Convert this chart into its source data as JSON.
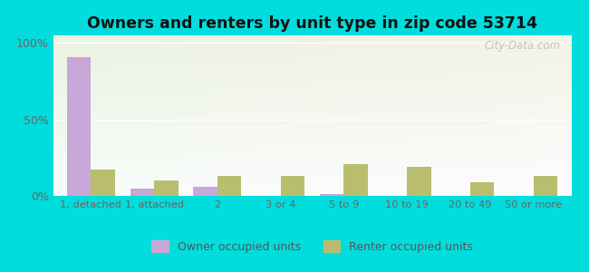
{
  "title": "Owners and renters by unit type in zip code 53714",
  "categories": [
    "1, detached",
    "1, attached",
    "2",
    "3 or 4",
    "5 to 9",
    "10 to 19",
    "20 to 49",
    "50 or more"
  ],
  "owner_values": [
    91,
    5,
    6,
    0,
    1,
    0,
    0,
    0
  ],
  "renter_values": [
    17,
    10,
    13,
    13,
    21,
    19,
    9,
    13
  ],
  "owner_color": "#c8a8d8",
  "renter_color": "#b8be6e",
  "ylim": [
    0,
    105
  ],
  "yticks": [
    0,
    50,
    100
  ],
  "ytick_labels": [
    "0%",
    "50%",
    "100%"
  ],
  "outer_bg": "#00dddd",
  "legend_owner": "Owner occupied units",
  "legend_renter": "Renter occupied units",
  "bar_width": 0.38,
  "title_fontsize": 12.5,
  "watermark": "City-Data.com"
}
